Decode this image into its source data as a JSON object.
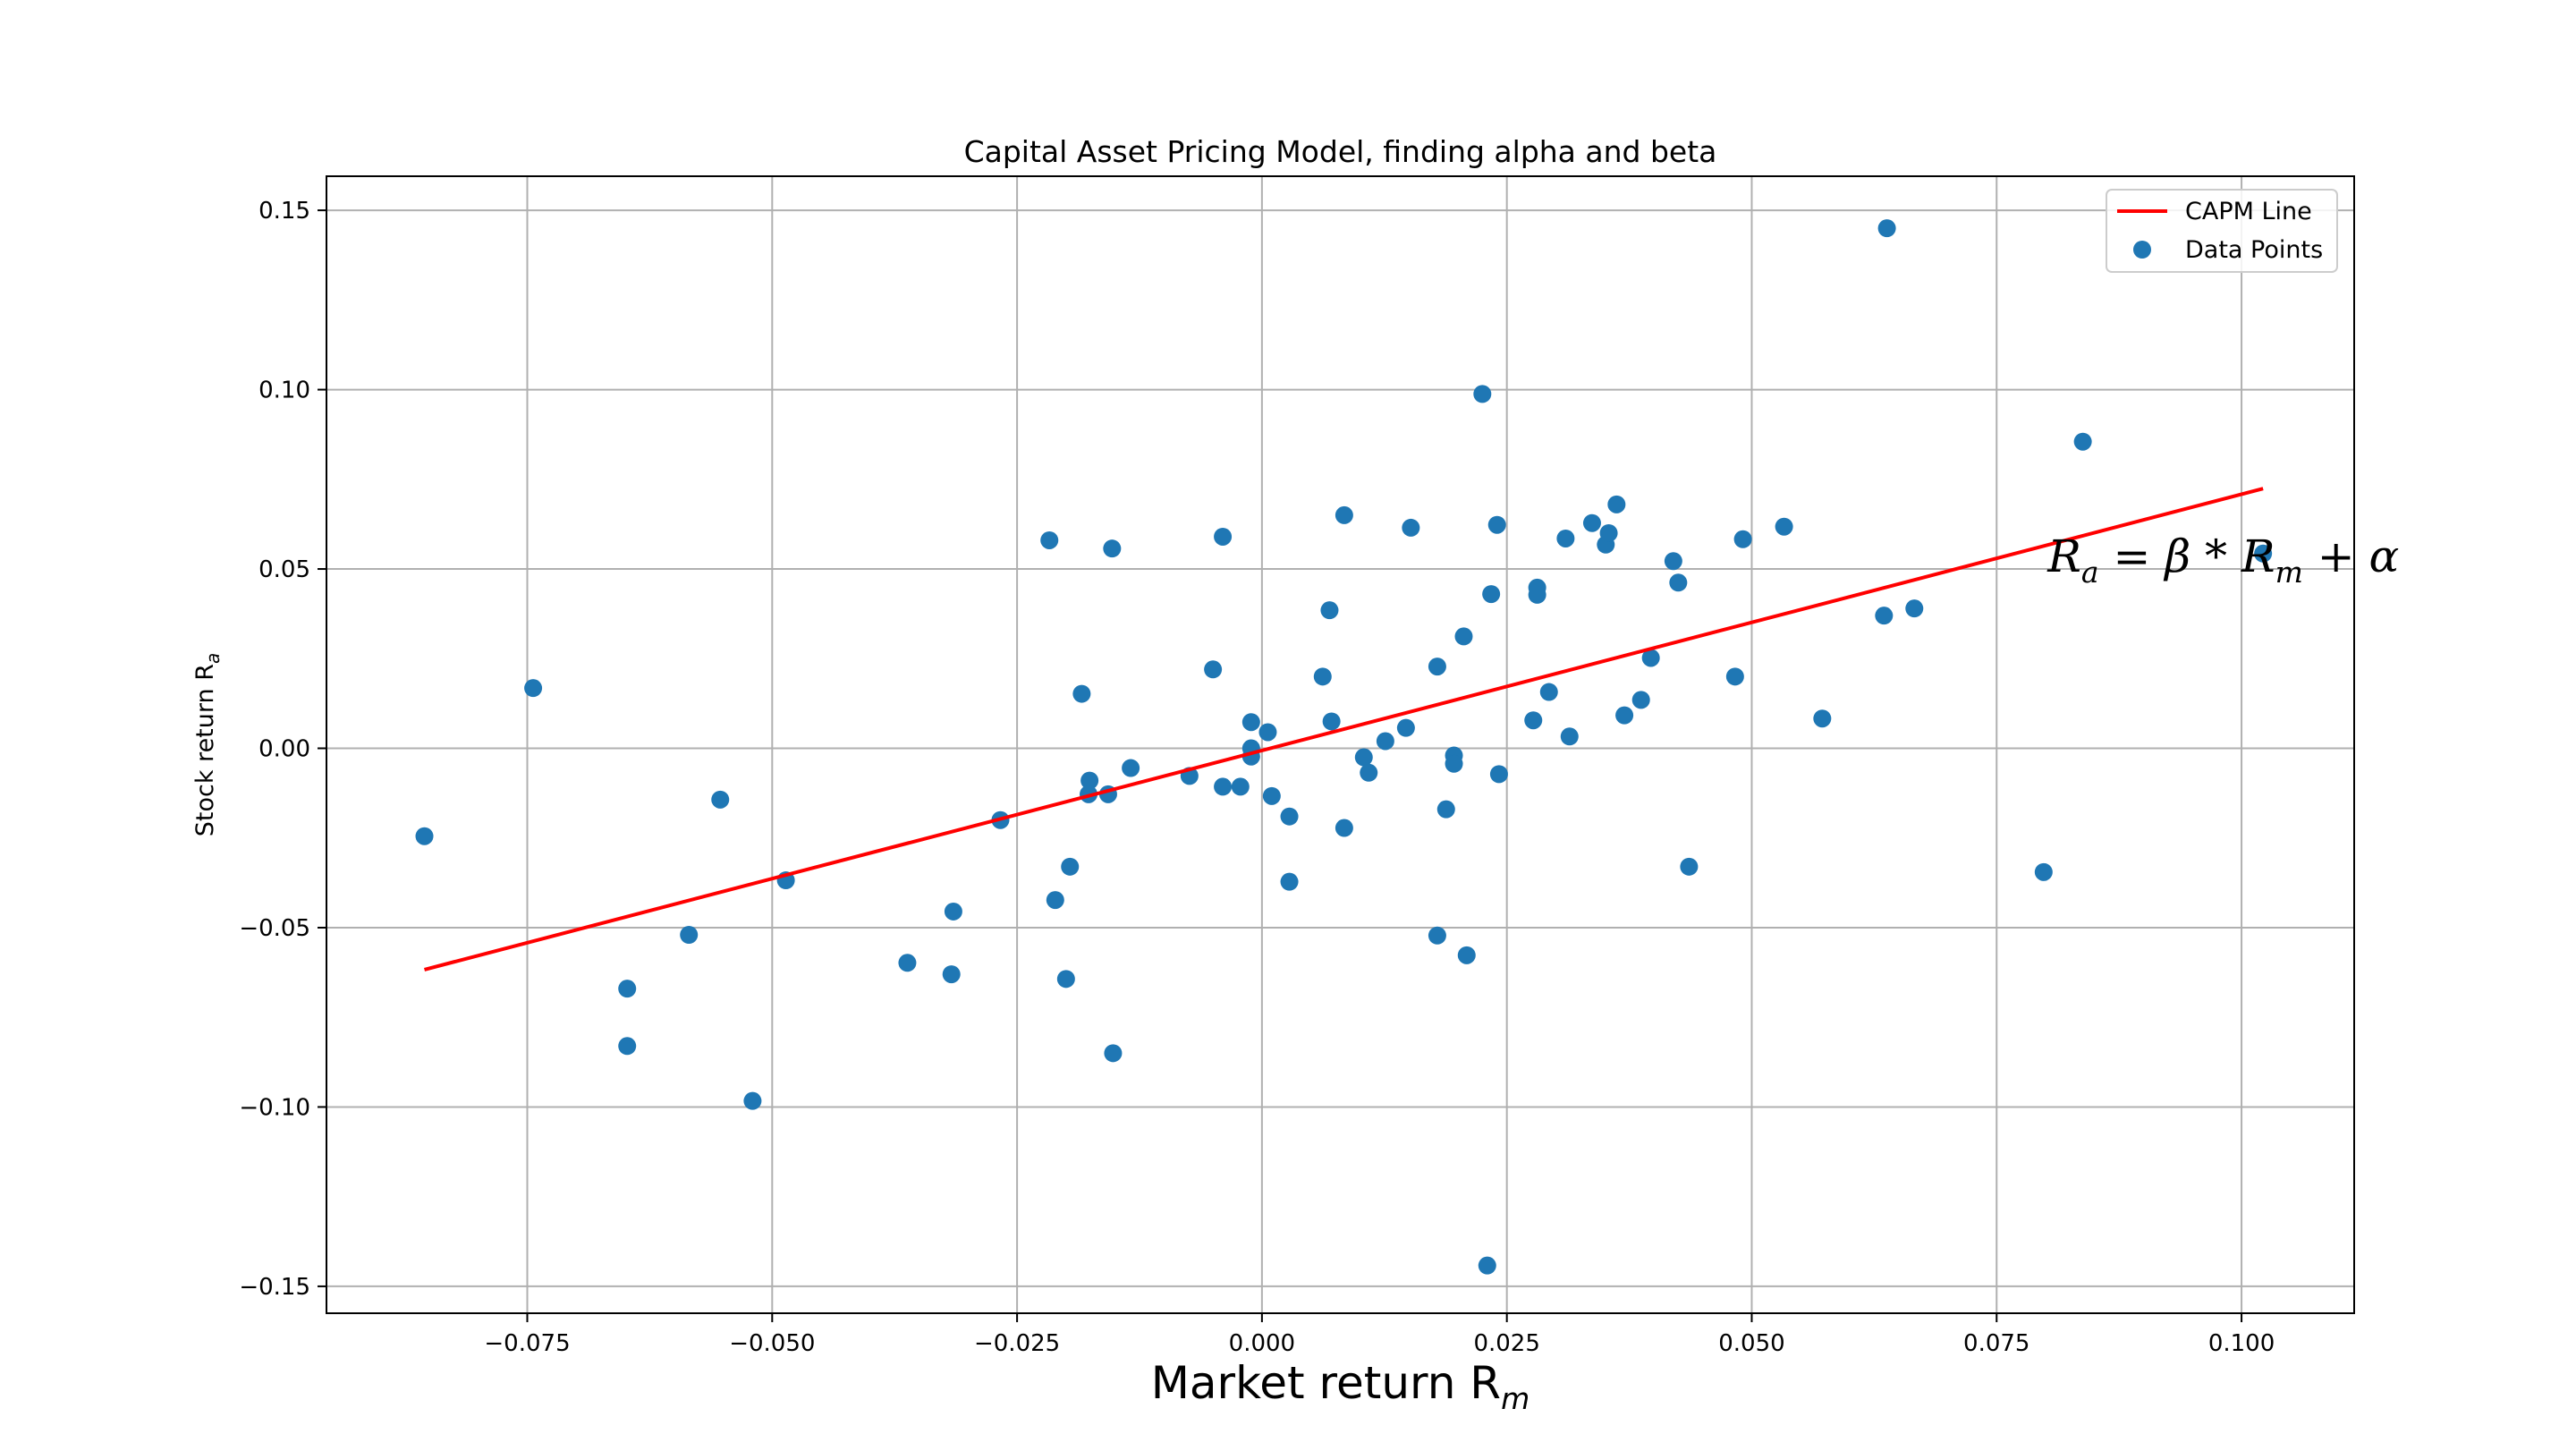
{
  "chart_data": {
    "type": "scatter",
    "title": "Capital Asset Pricing Model, finding alpha and beta",
    "xlabel": "Market return R",
    "xlabel_sub": "m",
    "ylabel": "Stock return R",
    "ylabel_sub": "a",
    "xlim": [
      -0.0955,
      0.1115
    ],
    "ylim": [
      -0.1575,
      0.1595
    ],
    "xticks": [
      -0.075,
      -0.05,
      -0.025,
      0.0,
      0.025,
      0.05,
      0.075,
      0.1
    ],
    "xtick_labels": [
      "−0.075",
      "−0.050",
      "−0.025",
      "0.000",
      "0.025",
      "0.050",
      "0.075",
      "0.100"
    ],
    "yticks": [
      0.15,
      0.1,
      0.05,
      0.0,
      -0.05,
      -0.1,
      -0.15
    ],
    "ytick_labels": [
      "0.15",
      "0.10",
      "0.05",
      "0.00",
      "−0.05",
      "−0.10",
      "−0.15"
    ],
    "grid": true,
    "legend_position": "top-right",
    "annotation": {
      "text_parts": [
        "R",
        "a",
        " = β * R",
        "m",
        " + α"
      ],
      "x": 0.0802,
      "y": 0.0532
    },
    "series": [
      {
        "name": "CAPM Line",
        "kind": "line",
        "color": "#ff0000",
        "x": [
          -0.0855,
          0.1022
        ],
        "y": [
          -0.0617,
          0.0724
        ]
      },
      {
        "name": "Data Points",
        "kind": "scatter",
        "color": "#1f77b4",
        "points": [
          [
            -0.0855,
            -0.0245
          ],
          [
            -0.0744,
            0.0168
          ],
          [
            -0.0648,
            -0.067
          ],
          [
            -0.0648,
            -0.083
          ],
          [
            -0.0585,
            -0.052
          ],
          [
            -0.0553,
            -0.0143
          ],
          [
            -0.052,
            -0.0983
          ],
          [
            -0.0486,
            -0.0368
          ],
          [
            -0.0362,
            -0.0598
          ],
          [
            -0.0317,
            -0.063
          ],
          [
            -0.0315,
            -0.0455
          ],
          [
            -0.0267,
            -0.02
          ],
          [
            -0.0217,
            0.058
          ],
          [
            -0.0211,
            -0.0423
          ],
          [
            -0.02,
            -0.0643
          ],
          [
            -0.0196,
            -0.033
          ],
          [
            -0.0184,
            0.0152
          ],
          [
            -0.0176,
            -0.009
          ],
          [
            -0.0177,
            -0.0128
          ],
          [
            -0.0157,
            -0.0128
          ],
          [
            -0.0153,
            0.0557
          ],
          [
            -0.0152,
            -0.085
          ],
          [
            -0.0134,
            -0.0055
          ],
          [
            -0.0074,
            -0.0077
          ],
          [
            -0.005,
            0.022
          ],
          [
            -0.004,
            0.059
          ],
          [
            -0.004,
            -0.0107
          ],
          [
            -0.0022,
            -0.0107
          ],
          [
            -0.0011,
            0.0073
          ],
          [
            -0.0011,
            0.0
          ],
          [
            -0.0011,
            -0.0023
          ],
          [
            0.0006,
            0.0045
          ],
          [
            0.001,
            -0.0133
          ],
          [
            0.0028,
            -0.019
          ],
          [
            0.0028,
            -0.0372
          ],
          [
            0.0062,
            0.02
          ],
          [
            0.0069,
            0.0385
          ],
          [
            0.0071,
            0.0075
          ],
          [
            0.0084,
            0.065
          ],
          [
            0.0084,
            -0.0222
          ],
          [
            0.0104,
            -0.0025
          ],
          [
            0.0109,
            -0.0068
          ],
          [
            0.0126,
            0.002
          ],
          [
            0.0147,
            0.0057
          ],
          [
            0.0152,
            0.0615
          ],
          [
            0.0179,
            0.0228
          ],
          [
            0.0179,
            -0.0522
          ],
          [
            0.0188,
            -0.017
          ],
          [
            0.0196,
            -0.002
          ],
          [
            0.0196,
            -0.0043
          ],
          [
            0.0206,
            0.0312
          ],
          [
            0.0209,
            -0.0577
          ],
          [
            0.0225,
            0.0988
          ],
          [
            0.023,
            -0.1442
          ],
          [
            0.0234,
            0.043
          ],
          [
            0.024,
            0.0623
          ],
          [
            0.0242,
            -0.0072
          ],
          [
            0.0277,
            0.0078
          ],
          [
            0.0281,
            0.0448
          ],
          [
            0.0281,
            0.0428
          ],
          [
            0.0293,
            0.0157
          ],
          [
            0.031,
            0.0585
          ],
          [
            0.0314,
            0.0033
          ],
          [
            0.0337,
            0.0628
          ],
          [
            0.0351,
            0.0568
          ],
          [
            0.0354,
            0.06
          ],
          [
            0.0362,
            0.068
          ],
          [
            0.037,
            0.0092
          ],
          [
            0.0387,
            0.0135
          ],
          [
            0.0397,
            0.0252
          ],
          [
            0.042,
            0.0522
          ],
          [
            0.0425,
            0.0462
          ],
          [
            0.0436,
            -0.033
          ],
          [
            0.0483,
            0.02
          ],
          [
            0.0491,
            0.0583
          ],
          [
            0.0533,
            0.0618
          ],
          [
            0.0572,
            0.0083
          ],
          [
            0.0635,
            0.037
          ],
          [
            0.0638,
            0.145
          ],
          [
            0.0666,
            0.039
          ],
          [
            0.0798,
            -0.0345
          ],
          [
            0.0838,
            0.0855
          ],
          [
            0.1022,
            0.0543
          ]
        ]
      }
    ]
  }
}
